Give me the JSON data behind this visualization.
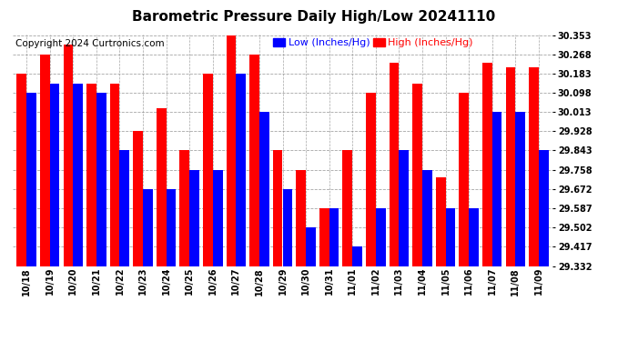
{
  "title": "Barometric Pressure Daily High/Low 20241110",
  "copyright": "Copyright 2024 Curtronics.com",
  "legend_low": "Low (Inches/Hg)",
  "legend_high": "High (Inches/Hg)",
  "categories": [
    "10/18",
    "10/19",
    "10/20",
    "10/21",
    "10/22",
    "10/23",
    "10/24",
    "10/25",
    "10/26",
    "10/27",
    "10/28",
    "10/29",
    "10/30",
    "10/31",
    "11/01",
    "11/02",
    "11/03",
    "11/04",
    "11/05",
    "11/06",
    "11/07",
    "11/08",
    "11/09"
  ],
  "high_values": [
    30.183,
    30.268,
    30.31,
    30.14,
    30.14,
    29.928,
    30.03,
    29.843,
    30.183,
    30.353,
    30.268,
    29.843,
    29.758,
    29.587,
    29.843,
    30.098,
    30.23,
    30.14,
    29.725,
    30.098,
    30.23,
    30.21,
    30.21
  ],
  "low_values": [
    30.098,
    30.14,
    30.14,
    30.098,
    29.843,
    29.672,
    29.672,
    29.758,
    29.758,
    30.183,
    30.013,
    29.672,
    29.502,
    29.587,
    29.417,
    29.587,
    29.843,
    29.758,
    29.587,
    29.587,
    30.013,
    30.013,
    29.843
  ],
  "ylim_min": 29.332,
  "ylim_max": 30.353,
  "yticks": [
    29.332,
    29.417,
    29.502,
    29.587,
    29.672,
    29.758,
    29.843,
    29.928,
    30.013,
    30.098,
    30.183,
    30.268,
    30.353
  ],
  "bar_color_high": "#ff0000",
  "bar_color_low": "#0000ff",
  "background_color": "#ffffff",
  "grid_color": "#808080",
  "title_fontsize": 11,
  "tick_fontsize": 7,
  "legend_fontsize": 8,
  "copyright_fontsize": 7.5
}
